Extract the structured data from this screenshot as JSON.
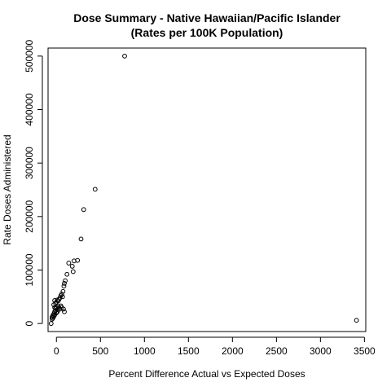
{
  "chart_data": {
    "type": "scatter",
    "title": "Dose Summary - Native Hawaiian/Pacific Islander",
    "subtitle": "(Rates per 100K Population)",
    "xlabel": "Percent Difference Actual vs Expected Doses",
    "ylabel": "Rate Doses Administered",
    "xlim": [
      -95,
      3515
    ],
    "ylim": [
      -15000,
      515000
    ],
    "x_ticks": [
      0,
      500,
      1000,
      1500,
      2000,
      2500,
      3000,
      3500
    ],
    "x_tick_labels": [
      "0",
      "500",
      "1000",
      "1500",
      "2000",
      "2500",
      "3000",
      "3500"
    ],
    "y_ticks": [
      0,
      100000,
      200000,
      300000,
      400000,
      500000
    ],
    "y_tick_labels": [
      "0",
      "100000",
      "200000",
      "300000",
      "400000",
      "500000"
    ],
    "grid": false,
    "legend": "none",
    "points": [
      {
        "x": 775,
        "y": 500000
      },
      {
        "x": 440,
        "y": 251000
      },
      {
        "x": 310,
        "y": 213000
      },
      {
        "x": 280,
        "y": 158000
      },
      {
        "x": 240,
        "y": 118000
      },
      {
        "x": 200,
        "y": 117000
      },
      {
        "x": 180,
        "y": 107000
      },
      {
        "x": 140,
        "y": 113000
      },
      {
        "x": 190,
        "y": 97000
      },
      {
        "x": 120,
        "y": 92000
      },
      {
        "x": 100,
        "y": 80000
      },
      {
        "x": 90,
        "y": 75000
      },
      {
        "x": 85,
        "y": 70000
      },
      {
        "x": 75,
        "y": 60000
      },
      {
        "x": 60,
        "y": 55000
      },
      {
        "x": 50,
        "y": 52000
      },
      {
        "x": 40,
        "y": 48000
      },
      {
        "x": 70,
        "y": 50000
      },
      {
        "x": 30,
        "y": 45000
      },
      {
        "x": 20,
        "y": 42000
      },
      {
        "x": 10,
        "y": 44000
      },
      {
        "x": 0,
        "y": 40000
      },
      {
        "x": -10,
        "y": 38000
      },
      {
        "x": -20,
        "y": 43000
      },
      {
        "x": -30,
        "y": 35000
      },
      {
        "x": -20,
        "y": 30000
      },
      {
        "x": -10,
        "y": 28000
      },
      {
        "x": 0,
        "y": 30000
      },
      {
        "x": 10,
        "y": 26000
      },
      {
        "x": 20,
        "y": 32000
      },
      {
        "x": 30,
        "y": 29000
      },
      {
        "x": 40,
        "y": 27000
      },
      {
        "x": 50,
        "y": 33000
      },
      {
        "x": 60,
        "y": 30000
      },
      {
        "x": 80,
        "y": 27000
      },
      {
        "x": 90,
        "y": 22000
      },
      {
        "x": 10,
        "y": 22000
      },
      {
        "x": 0,
        "y": 20000
      },
      {
        "x": -10,
        "y": 24000
      },
      {
        "x": -20,
        "y": 22000
      },
      {
        "x": -30,
        "y": 18000
      },
      {
        "x": -40,
        "y": 15000
      },
      {
        "x": -50,
        "y": 12000
      },
      {
        "x": -40,
        "y": 10000
      },
      {
        "x": -30,
        "y": 13000
      },
      {
        "x": -20,
        "y": 16000
      },
      {
        "x": -50,
        "y": 8000
      },
      {
        "x": -60,
        "y": 0
      },
      {
        "x": 3410,
        "y": 6000
      }
    ]
  }
}
